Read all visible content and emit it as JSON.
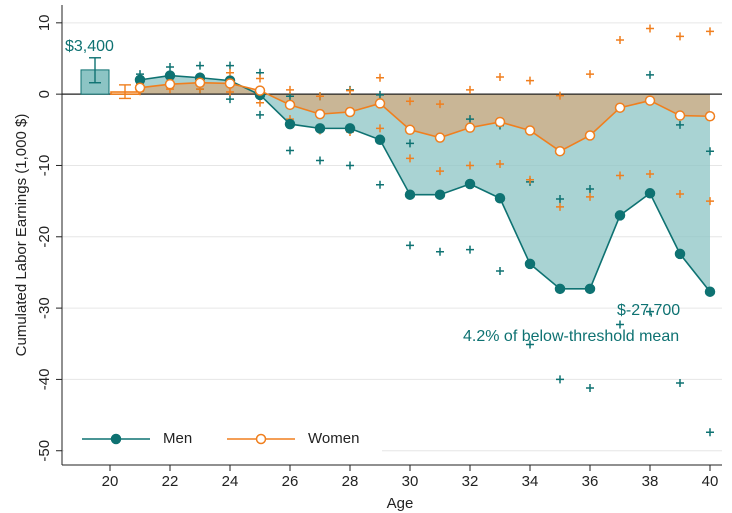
{
  "chart_data": {
    "type": "line",
    "x_label": "Age",
    "y_label": "Cumulated Labor Earnings (1,000 $)",
    "x": [
      21,
      22,
      23,
      24,
      25,
      26,
      27,
      28,
      29,
      30,
      31,
      32,
      33,
      34,
      35,
      36,
      37,
      38,
      39,
      40
    ],
    "series": [
      {
        "name": "Men",
        "color": "#0e7272",
        "fill": "#8cc4c4",
        "values": [
          2.0,
          2.6,
          2.3,
          1.9,
          -0.1,
          -4.2,
          -4.8,
          -4.8,
          -6.4,
          -14.1,
          -14.1,
          -12.6,
          -14.6,
          -23.8,
          -27.3,
          -27.3,
          -17.0,
          -13.9,
          -22.4,
          -27.7
        ],
        "ci_upper": [
          2.8,
          3.8,
          4.0,
          4.0,
          3.0,
          -0.3,
          -0.3,
          0.6,
          -0.1,
          -6.9,
          -6.1,
          -3.5,
          -4.4,
          -12.3,
          -14.7,
          -13.3,
          -1.9,
          2.7,
          -4.3,
          -8.0
        ],
        "ci_lower": [
          1.2,
          1.3,
          0.7,
          -0.7,
          -2.9,
          -7.9,
          -9.3,
          -10.0,
          -12.7,
          -21.2,
          -22.1,
          -21.8,
          -24.8,
          -35.1,
          -40.0,
          -41.2,
          -32.3,
          -30.5,
          -40.5,
          -47.4
        ],
        "bar": 3.4,
        "bar_ci": [
          1.6,
          5.1
        ]
      },
      {
        "name": "Women",
        "color": "#f07f1e",
        "fill": "#e0a46e",
        "values": [
          0.9,
          1.4,
          1.6,
          1.5,
          0.5,
          -1.5,
          -2.8,
          -2.5,
          -1.3,
          -5.0,
          -6.1,
          -4.7,
          -3.9,
          -5.1,
          -8.0,
          -5.8,
          -1.9,
          -0.9,
          -3.0,
          -3.1
        ],
        "ci_upper": [
          1.5,
          2.3,
          2.5,
          3.0,
          2.2,
          0.6,
          -0.3,
          0.5,
          2.3,
          -1.0,
          -1.4,
          0.6,
          2.4,
          1.9,
          -0.2,
          2.8,
          7.6,
          9.2,
          8.1,
          8.8
        ],
        "ci_lower": [
          0.4,
          0.7,
          0.7,
          0.3,
          -1.2,
          -3.5,
          -5.1,
          -5.3,
          -4.8,
          -9.0,
          -10.8,
          -10.0,
          -9.8,
          -12.0,
          -15.8,
          -14.4,
          -11.4,
          -11.2,
          -14.0,
          -15.0
        ],
        "bar": 0.3,
        "bar_ci": [
          -0.6,
          1.3
        ]
      }
    ],
    "bar_x": 20,
    "annotations": [
      "$3,400",
      "$-27,700",
      "4.2% of below-threshold mean"
    ],
    "xlim": [
      18.4,
      40.4
    ],
    "xticks": [
      20,
      22,
      24,
      26,
      28,
      30,
      32,
      34,
      36,
      38,
      40
    ],
    "ylim": [
      -52,
      12.5
    ],
    "yticks": [
      10,
      0,
      -10,
      -20,
      -30,
      -40,
      -50
    ],
    "grid": true,
    "legend": "bottom-left"
  }
}
